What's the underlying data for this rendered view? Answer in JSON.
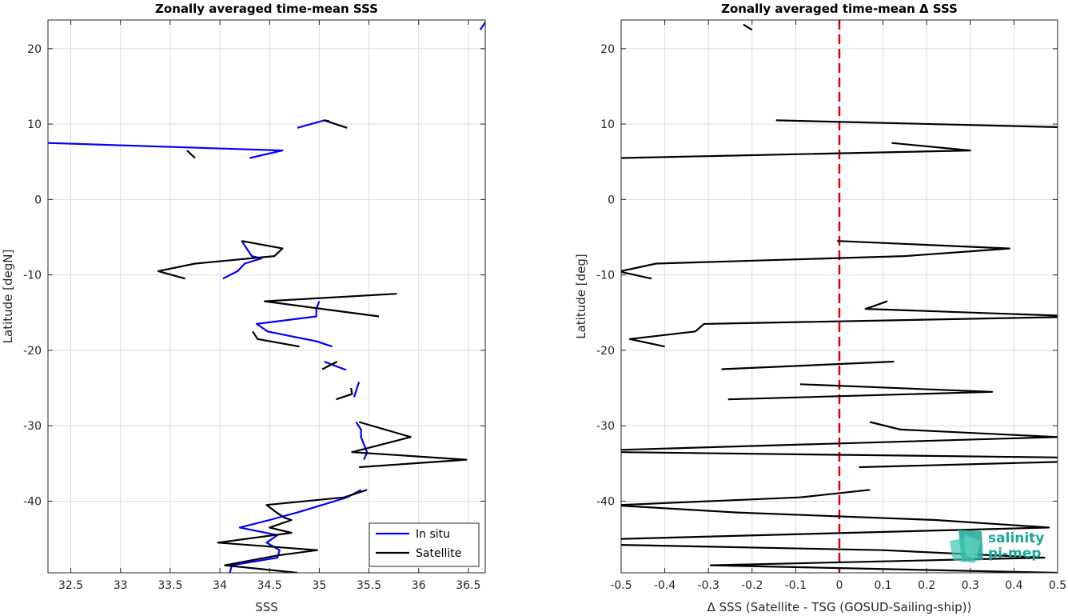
{
  "chart_data": [
    {
      "type": "line",
      "title": "Zonally averaged time-mean SSS",
      "xlabel": "SSS",
      "ylabel": "Latitude [degN]",
      "xlim": [
        32.27,
        36.67
      ],
      "ylim": [
        -49.5,
        23.8
      ],
      "xticks": [
        "32.5",
        "33",
        "33.5",
        "34",
        "34.5",
        "35",
        "35.5",
        "36",
        "36.5"
      ],
      "yticks": [
        "20",
        "10",
        "0",
        "-10",
        "-20",
        "-30",
        "-40"
      ],
      "grid": true,
      "legend": {
        "placement": "bottom-right",
        "entries": [
          "In situ",
          "Satellite"
        ]
      },
      "series": [
        {
          "name": "In situ",
          "color": "#0000ff",
          "segments": [
            [
              [
                34.78,
                9.5
              ],
              [
                35.05,
                10.5
              ],
              [
                35.1,
                10.4
              ]
            ],
            [
              [
                32.27,
                7.5
              ],
              [
                34.63,
                6.5
              ],
              [
                34.3,
                5.5
              ]
            ],
            [
              [
                34.22,
                -5.5
              ],
              [
                34.32,
                -7.5
              ],
              [
                34.42,
                -7.8
              ],
              [
                34.25,
                -8.5
              ],
              [
                34.18,
                -9.5
              ],
              [
                34.03,
                -10.5
              ]
            ],
            [
              [
                35.0,
                -13.5
              ],
              [
                34.97,
                -14.5
              ],
              [
                34.97,
                -15.5
              ],
              [
                34.37,
                -16.5
              ],
              [
                34.48,
                -17.5
              ],
              [
                34.97,
                -18.8
              ],
              [
                35.13,
                -19.5
              ]
            ],
            [
              [
                35.05,
                -21.5
              ],
              [
                35.15,
                -22
              ],
              [
                35.27,
                -22.6
              ]
            ],
            [
              [
                35.4,
                -24.2
              ],
              [
                35.35,
                -26.2
              ]
            ],
            [
              [
                35.37,
                -29.5
              ],
              [
                35.42,
                -30.5
              ],
              [
                35.42,
                -31.5
              ],
              [
                35.45,
                -32.5
              ],
              [
                35.48,
                -33.5
              ],
              [
                35.45,
                -34.5
              ]
            ],
            [
              [
                35.42,
                -38.5
              ],
              [
                35.28,
                -39.5
              ],
              [
                35.03,
                -40.5
              ],
              [
                34.78,
                -41.5
              ],
              [
                34.5,
                -42.5
              ],
              [
                34.2,
                -43.5
              ],
              [
                34.58,
                -44.5
              ],
              [
                34.47,
                -45.5
              ],
              [
                34.6,
                -46.5
              ],
              [
                34.58,
                -47.5
              ],
              [
                34.12,
                -48.5
              ],
              [
                34.1,
                -49.5
              ]
            ],
            [
              [
                36.62,
                22.5
              ],
              [
                36.67,
                23.5
              ]
            ]
          ]
        },
        {
          "name": "Satellite",
          "color": "#000000",
          "segments": [
            [
              [
                35.05,
                10.5
              ],
              [
                35.28,
                9.5
              ]
            ],
            [
              [
                33.67,
                6.5
              ],
              [
                33.75,
                5.5
              ]
            ],
            [
              [
                34.22,
                -5.5
              ],
              [
                34.63,
                -6.5
              ],
              [
                34.55,
                -7.5
              ],
              [
                33.75,
                -8.5
              ],
              [
                33.38,
                -9.5
              ],
              [
                33.65,
                -10.5
              ]
            ],
            [
              [
                35.78,
                -12.5
              ],
              [
                34.45,
                -13.5
              ],
              [
                35.6,
                -15.5
              ]
            ],
            [
              [
                34.33,
                -17.5
              ],
              [
                34.38,
                -18.5
              ],
              [
                34.8,
                -19.5
              ]
            ],
            [
              [
                35.18,
                -21.5
              ],
              [
                35.03,
                -22.5
              ]
            ],
            [
              [
                35.32,
                -25
              ],
              [
                35.33,
                -25.8
              ],
              [
                35.17,
                -26.5
              ]
            ],
            [
              [
                35.4,
                -29.5
              ],
              [
                35.92,
                -31.5
              ],
              [
                35.33,
                -33.5
              ],
              [
                36.48,
                -34.5
              ],
              [
                35.4,
                -35.5
              ]
            ],
            [
              [
                35.48,
                -38.5
              ],
              [
                35.25,
                -39.5
              ],
              [
                34.47,
                -40.5
              ],
              [
                34.57,
                -41.5
              ],
              [
                34.65,
                -42.2
              ],
              [
                34.72,
                -42.5
              ],
              [
                34.5,
                -43.5
              ],
              [
                34.72,
                -44.2
              ],
              [
                33.98,
                -45.5
              ],
              [
                34.98,
                -46.5
              ],
              [
                34.58,
                -47.2
              ],
              [
                34.05,
                -48.5
              ],
              [
                34.78,
                -49.5
              ]
            ]
          ]
        }
      ]
    },
    {
      "type": "line",
      "title": "Zonally averaged time-mean Δ SSS",
      "xlabel": "Δ SSS (Satellite - TSG (GOSUD-Sailing-ship))",
      "ylabel": "Latitude [deg]",
      "xlim": [
        -0.5,
        0.5
      ],
      "ylim": [
        -49.5,
        23.8
      ],
      "xticks": [
        "-0.5",
        "-0.4",
        "-0.3",
        "-0.2",
        "-0.1",
        "0",
        "0.1",
        "0.2",
        "0.3",
        "0.4",
        "0.5"
      ],
      "yticks": [
        "20",
        "10",
        "0",
        "-10",
        "-20",
        "-30",
        "-40"
      ],
      "grid": true,
      "reference_line": {
        "x": 0,
        "color": "#dd0000",
        "style": "dashed"
      },
      "series": [
        {
          "color": "#000000",
          "segments": [
            [
              [
                -0.2,
                22.5
              ],
              [
                -0.22,
                23.2
              ]
            ],
            [
              [
                -0.145,
                10.5
              ],
              [
                0.5,
                9.6
              ]
            ],
            [
              [
                0.12,
                7.5
              ],
              [
                0.3,
                6.5
              ],
              [
                -0.5,
                5.5
              ]
            ],
            [
              [
                -0.005,
                -5.5
              ],
              [
                0.39,
                -6.5
              ],
              [
                0.15,
                -7.5
              ],
              [
                -0.42,
                -8.5
              ],
              [
                -0.5,
                -9.5
              ]
            ],
            [
              [
                -0.5,
                -9.6
              ],
              [
                -0.43,
                -10.5
              ]
            ],
            [
              [
                0.11,
                -13.5
              ],
              [
                0.06,
                -14.5
              ],
              [
                0.5,
                -15.4
              ]
            ],
            [
              [
                0.5,
                -15.6
              ],
              [
                -0.31,
                -16.5
              ],
              [
                -0.33,
                -17.5
              ],
              [
                -0.48,
                -18.5
              ],
              [
                -0.4,
                -19.5
              ]
            ],
            [
              [
                0.125,
                -21.5
              ],
              [
                -0.27,
                -22.5
              ]
            ],
            [
              [
                -0.09,
                -24.5
              ],
              [
                0.35,
                -25.5
              ],
              [
                -0.255,
                -26.5
              ]
            ],
            [
              [
                0.07,
                -29.5
              ],
              [
                0.14,
                -30.5
              ],
              [
                0.5,
                -31.5
              ],
              [
                -0.5,
                -33.2
              ]
            ],
            [
              [
                -0.5,
                -33.5
              ],
              [
                0.5,
                -34.2
              ]
            ],
            [
              [
                0.5,
                -34.8
              ],
              [
                0.045,
                -35.5
              ]
            ],
            [
              [
                0.07,
                -38.5
              ],
              [
                -0.09,
                -39.5
              ],
              [
                -0.5,
                -40.5
              ]
            ],
            [
              [
                -0.5,
                -40.6
              ],
              [
                -0.235,
                -41.5
              ],
              [
                0.22,
                -42.5
              ],
              [
                0.48,
                -43.5
              ],
              [
                -0.5,
                -45
              ]
            ],
            [
              [
                -0.5,
                -45.8
              ],
              [
                0.1,
                -46.5
              ],
              [
                0.47,
                -47.5
              ],
              [
                -0.295,
                -48.5
              ],
              [
                0.5,
                -49.5
              ]
            ]
          ]
        }
      ]
    }
  ],
  "logo": {
    "line1": "salinity",
    "line2": "pi-mep"
  }
}
